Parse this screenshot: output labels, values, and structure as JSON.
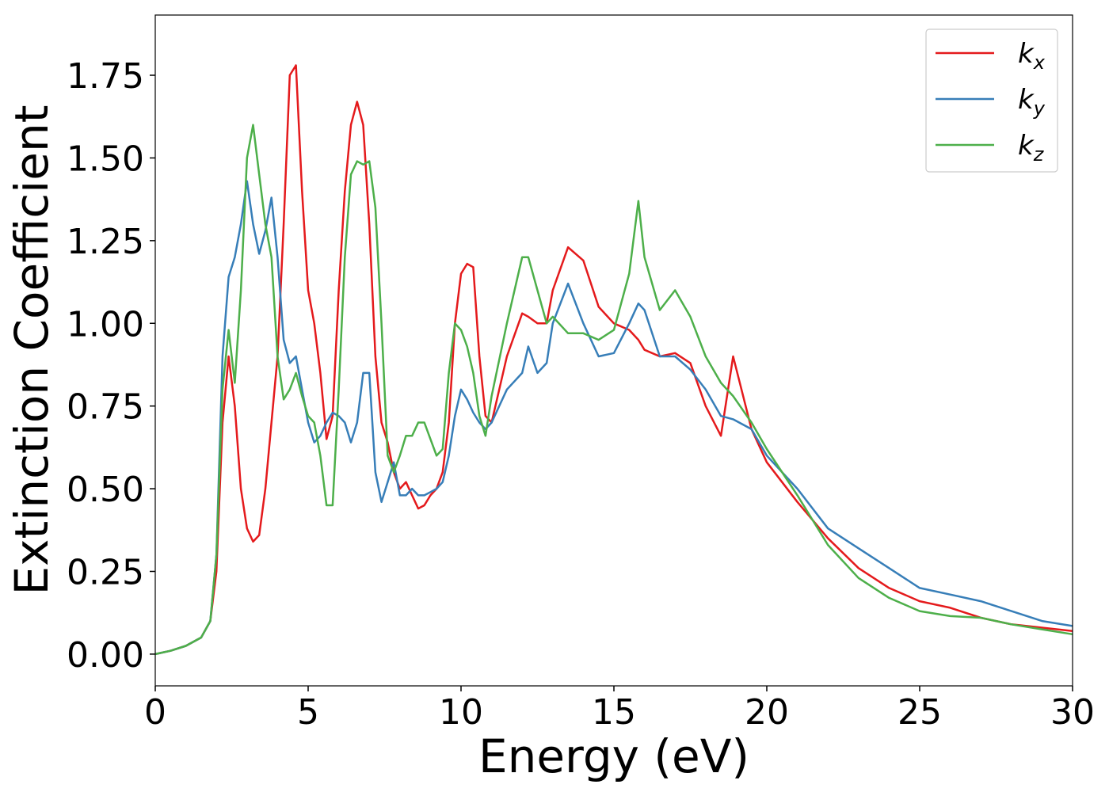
{
  "chart_data": {
    "type": "line",
    "xlabel": "Energy (eV)",
    "ylabel": "Extinction Coefficient",
    "xlim": [
      0,
      30
    ],
    "xticks": [
      0,
      5,
      10,
      15,
      20,
      25,
      30
    ],
    "ylim": [
      -0.096,
      1.932
    ],
    "yticks": [
      {
        "value": 0,
        "label": "0.00"
      },
      {
        "value": 0.25,
        "label": "0.25"
      },
      {
        "value": 0.5,
        "label": "0.50"
      },
      {
        "value": 0.75,
        "label": "0.75"
      },
      {
        "value": 1,
        "label": "1.00"
      },
      {
        "value": 1.25,
        "label": "1.25"
      },
      {
        "value": 1.5,
        "label": "1.50"
      },
      {
        "value": 1.75,
        "label": "1.75"
      }
    ],
    "legend": "upper right",
    "x": [
      0,
      0.5,
      1,
      1.5,
      1.8,
      2,
      2.2,
      2.4,
      2.6,
      2.8,
      3,
      3.2,
      3.4,
      3.6,
      3.8,
      4,
      4.2,
      4.4,
      4.6,
      4.8,
      5,
      5.2,
      5.4,
      5.6,
      5.8,
      6,
      6.2,
      6.4,
      6.6,
      6.8,
      7,
      7.2,
      7.4,
      7.6,
      7.8,
      8,
      8.2,
      8.4,
      8.6,
      8.8,
      9,
      9.2,
      9.4,
      9.6,
      9.8,
      10,
      10.2,
      10.4,
      10.6,
      10.8,
      11,
      11.5,
      12,
      12.2,
      12.5,
      12.8,
      13,
      13.5,
      14,
      14.5,
      15,
      15.5,
      15.8,
      16,
      16.5,
      17,
      17.5,
      18,
      18.5,
      18.9,
      19.5,
      20,
      21,
      22,
      23,
      24,
      25,
      26,
      27,
      28,
      29,
      30
    ],
    "series": [
      {
        "name": "kx",
        "color": "#e41a1c",
        "values": [
          0,
          0.01,
          0.025,
          0.05,
          0.1,
          0.25,
          0.7,
          0.9,
          0.75,
          0.5,
          0.38,
          0.34,
          0.36,
          0.5,
          0.7,
          0.9,
          1.3,
          1.75,
          1.78,
          1.4,
          1.1,
          1.0,
          0.85,
          0.65,
          0.72,
          1.1,
          1.4,
          1.6,
          1.67,
          1.6,
          1.3,
          0.9,
          0.7,
          0.64,
          0.55,
          0.5,
          0.52,
          0.48,
          0.44,
          0.45,
          0.48,
          0.5,
          0.55,
          0.7,
          1.0,
          1.15,
          1.18,
          1.17,
          0.9,
          0.72,
          0.7,
          0.9,
          1.03,
          1.02,
          1.0,
          1.0,
          1.1,
          1.23,
          1.19,
          1.05,
          1.0,
          0.98,
          0.95,
          0.92,
          0.9,
          0.91,
          0.88,
          0.75,
          0.66,
          0.9,
          0.68,
          0.58,
          0.46,
          0.35,
          0.26,
          0.2,
          0.16,
          0.14,
          0.11,
          0.09,
          0.08,
          0.07
        ]
      },
      {
        "name": "ky",
        "color": "#377eb8",
        "values": [
          0,
          0.01,
          0.025,
          0.05,
          0.1,
          0.3,
          0.9,
          1.14,
          1.2,
          1.3,
          1.43,
          1.3,
          1.21,
          1.28,
          1.38,
          1.2,
          0.95,
          0.88,
          0.9,
          0.8,
          0.7,
          0.64,
          0.66,
          0.7,
          0.73,
          0.72,
          0.7,
          0.64,
          0.7,
          0.85,
          0.85,
          0.55,
          0.46,
          0.52,
          0.58,
          0.48,
          0.48,
          0.5,
          0.48,
          0.48,
          0.49,
          0.5,
          0.52,
          0.6,
          0.72,
          0.8,
          0.77,
          0.73,
          0.7,
          0.68,
          0.7,
          0.8,
          0.85,
          0.93,
          0.85,
          0.88,
          1.0,
          1.12,
          1.0,
          0.9,
          0.91,
          1.0,
          1.06,
          1.04,
          0.9,
          0.9,
          0.86,
          0.8,
          0.72,
          0.71,
          0.68,
          0.6,
          0.5,
          0.38,
          0.32,
          0.26,
          0.2,
          0.18,
          0.16,
          0.13,
          0.1,
          0.085
        ]
      },
      {
        "name": "kz",
        "color": "#4daf4a",
        "values": [
          0,
          0.01,
          0.025,
          0.05,
          0.1,
          0.3,
          0.8,
          0.98,
          0.82,
          1.1,
          1.5,
          1.6,
          1.45,
          1.3,
          1.2,
          0.9,
          0.77,
          0.8,
          0.85,
          0.78,
          0.72,
          0.7,
          0.6,
          0.45,
          0.45,
          0.8,
          1.2,
          1.45,
          1.49,
          1.48,
          1.49,
          1.35,
          1.0,
          0.6,
          0.55,
          0.6,
          0.66,
          0.66,
          0.7,
          0.7,
          0.65,
          0.6,
          0.62,
          0.85,
          1.0,
          0.98,
          0.93,
          0.85,
          0.72,
          0.66,
          0.78,
          1.0,
          1.2,
          1.2,
          1.1,
          1.0,
          1.02,
          0.97,
          0.97,
          0.95,
          0.98,
          1.15,
          1.37,
          1.2,
          1.04,
          1.1,
          1.02,
          0.9,
          0.82,
          0.78,
          0.7,
          0.62,
          0.48,
          0.33,
          0.23,
          0.17,
          0.13,
          0.115,
          0.11,
          0.09,
          0.075,
          0.06
        ]
      }
    ]
  }
}
